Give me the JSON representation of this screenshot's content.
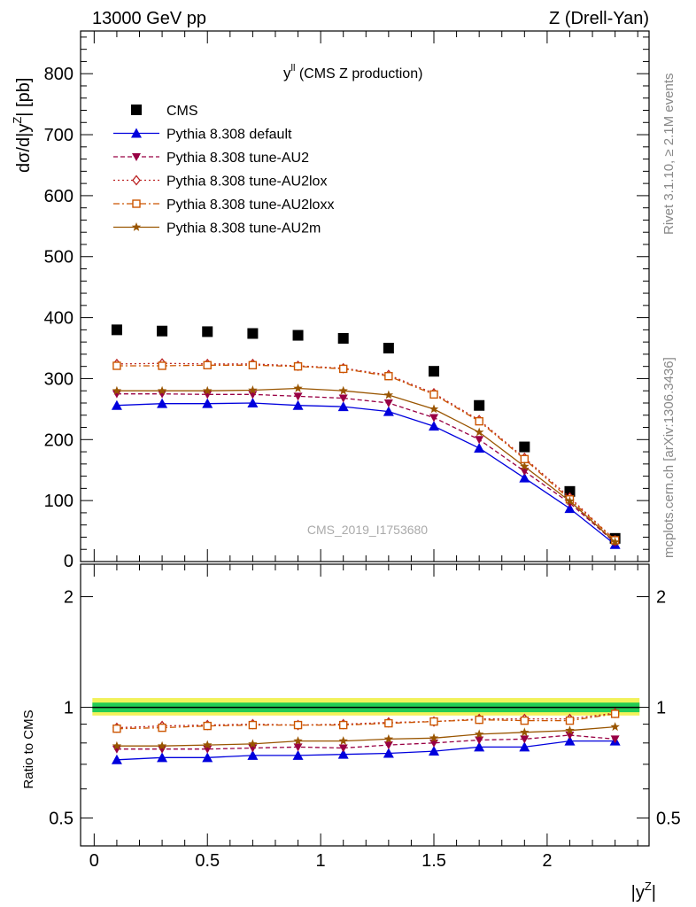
{
  "header": {
    "left": "13000 GeV pp",
    "right": "Z (Drell-Yan)"
  },
  "side_labels": {
    "rivet": "Rivet 3.1.10, ≥ 2.1M events",
    "mcplots": "mcplots.cern.ch [arXiv:1306.3436]"
  },
  "watermark": "CMS_2019_I1753680",
  "chart_data": [
    {
      "type": "scatter",
      "title_main": "y",
      "title_sup": "ll",
      "title_rest": " (CMS Z production)",
      "ylabel": "dσ/d|y",
      "ylabel_sup": "Z",
      "ylabel_end": "| [pb]",
      "ylim": [
        0,
        870
      ],
      "xlim": [
        -0.06,
        2.45
      ],
      "yticks": [
        100,
        200,
        300,
        400,
        500,
        600,
        700,
        800
      ],
      "ytick_labels": [
        "100",
        "200",
        "300",
        "400",
        "500",
        "600",
        "700",
        "800"
      ],
      "ytick_zero_label": "0",
      "x": [
        0.1,
        0.3,
        0.5,
        0.7,
        0.9,
        1.1,
        1.3,
        1.5,
        1.7,
        1.9,
        2.1,
        2.3
      ],
      "legend_placement": "top-left",
      "series": [
        {
          "name": "CMS",
          "color": "#000000",
          "marker": "square",
          "line": "none",
          "values": [
            380,
            378,
            377,
            374,
            371,
            366,
            350,
            312,
            256,
            188,
            115,
            38
          ]
        },
        {
          "name": "Pythia 8.308 default",
          "color": "#0000dd",
          "marker": "triangle-up",
          "line": "solid",
          "values": [
            256,
            259,
            259,
            260,
            256,
            254,
            246,
            222,
            186,
            137,
            87,
            28
          ]
        },
        {
          "name": "Pythia 8.308 tune-AU2",
          "color": "#990044",
          "marker": "triangle-down",
          "line": "dashed",
          "values": [
            275,
            275,
            274,
            274,
            271,
            268,
            260,
            236,
            200,
            148,
            96,
            31
          ]
        },
        {
          "name": "Pythia 8.308 tune-AU2lox",
          "color": "#bb2222",
          "marker": "diamond-open",
          "line": "dotted",
          "values": [
            324,
            325,
            324,
            324,
            321,
            317,
            306,
            276,
            232,
            170,
            105,
            35
          ]
        },
        {
          "name": "Pythia 8.308 tune-AU2loxx",
          "color": "#cc5500",
          "marker": "square-open",
          "line": "dashdot",
          "values": [
            321,
            321,
            322,
            322,
            320,
            316,
            304,
            274,
            230,
            168,
            102,
            35
          ]
        },
        {
          "name": "Pythia 8.308 tune-AU2m",
          "color": "#995500",
          "marker": "star",
          "line": "solid",
          "values": [
            280,
            280,
            280,
            281,
            284,
            280,
            273,
            250,
            212,
            156,
            99,
            32
          ]
        }
      ]
    },
    {
      "type": "scatter",
      "ylabel": "Ratio to CMS",
      "xlabel": "|y",
      "xlabel_sup": "Z",
      "xlabel_end": "|",
      "ylim": [
        0.42,
        2.45
      ],
      "log_y": true,
      "yticks": [
        0.5,
        1,
        2
      ],
      "ytick_labels": [
        "0.5",
        "1",
        "2"
      ],
      "xticks": [
        0,
        0.5,
        1,
        1.5,
        2
      ],
      "xtick_labels": [
        "0",
        "0.5",
        "1",
        "1.5",
        "2"
      ],
      "band": {
        "inner": [
          0.97,
          1.03
        ],
        "outer": [
          0.95,
          1.06
        ],
        "inner_color": "#22cc55",
        "outer_color": "#f2f25a"
      },
      "x": [
        0.1,
        0.3,
        0.5,
        0.7,
        0.9,
        1.1,
        1.3,
        1.5,
        1.7,
        1.9,
        2.1,
        2.3
      ],
      "series": [
        {
          "name": "Pythia 8.308 default",
          "color": "#0000dd",
          "marker": "triangle-up",
          "line": "solid",
          "values": [
            0.72,
            0.73,
            0.73,
            0.74,
            0.74,
            0.745,
            0.75,
            0.76,
            0.78,
            0.78,
            0.81,
            0.81
          ]
        },
        {
          "name": "Pythia 8.308 tune-AU2",
          "color": "#990044",
          "marker": "triangle-down",
          "line": "dashed",
          "values": [
            0.77,
            0.77,
            0.77,
            0.775,
            0.78,
            0.775,
            0.79,
            0.8,
            0.815,
            0.82,
            0.84,
            0.82
          ]
        },
        {
          "name": "Pythia 8.308 tune-AU2lox",
          "color": "#bb2222",
          "marker": "diamond-open",
          "line": "dotted",
          "values": [
            0.88,
            0.89,
            0.895,
            0.9,
            0.895,
            0.9,
            0.91,
            0.915,
            0.93,
            0.93,
            0.93,
            0.965
          ]
        },
        {
          "name": "Pythia 8.308 tune-AU2loxx",
          "color": "#cc5500",
          "marker": "square-open",
          "line": "dashdot",
          "values": [
            0.875,
            0.88,
            0.89,
            0.895,
            0.895,
            0.895,
            0.905,
            0.915,
            0.925,
            0.92,
            0.92,
            0.96
          ]
        },
        {
          "name": "Pythia 8.308 tune-AU2m",
          "color": "#995500",
          "marker": "star",
          "line": "solid",
          "values": [
            0.785,
            0.785,
            0.79,
            0.795,
            0.81,
            0.81,
            0.82,
            0.825,
            0.845,
            0.855,
            0.865,
            0.885
          ]
        }
      ]
    }
  ]
}
